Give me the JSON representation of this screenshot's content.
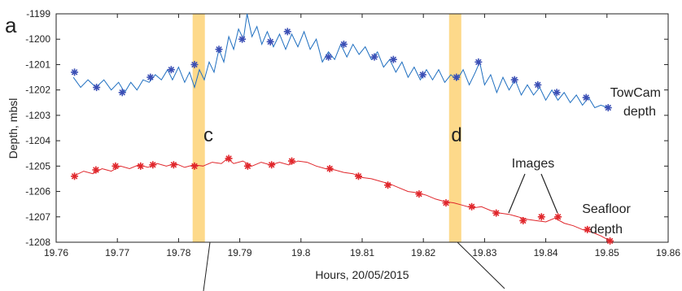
{
  "panel_label": "a",
  "annotations": {
    "band_c": "c",
    "band_d": "d",
    "images": "Images",
    "towcam_1": "TowCam",
    "towcam_2": "depth",
    "seafloor_1": "Seafloor",
    "seafloor_2": "depth"
  },
  "chart_data": {
    "type": "line",
    "xlabel": "Hours, 20/05/2015",
    "ylabel": "Depth, mbsl",
    "xlim": [
      19.76,
      19.86
    ],
    "ylim": [
      -1208,
      -1199
    ],
    "xticks": [
      "19.76",
      "19.77",
      "19.78",
      "19.79",
      "19.8",
      "19.81",
      "19.82",
      "19.83",
      "19.84",
      "19.85",
      "19.86"
    ],
    "yticks": [
      "-1199",
      "-1200",
      "-1201",
      "-1202",
      "-1203",
      "-1204",
      "-1205",
      "-1206",
      "-1207",
      "-1208"
    ],
    "grid": false,
    "highlight_bands": [
      {
        "label": "c",
        "x": [
          19.7823,
          19.7843
        ],
        "color": "#fdd98a"
      },
      {
        "label": "d",
        "x": [
          19.8242,
          19.8262
        ],
        "color": "#fdd98a"
      }
    ],
    "series": [
      {
        "name": "TowCam depth",
        "color": "#1f6fc0",
        "marker_color": "#3b4fb5",
        "line": [
          [
            19.7628,
            -1201.5
          ],
          [
            19.764,
            -1201.9
          ],
          [
            19.7652,
            -1201.6
          ],
          [
            19.7665,
            -1201.9
          ],
          [
            19.7678,
            -1201.6
          ],
          [
            19.769,
            -1202.0
          ],
          [
            19.7702,
            -1201.7
          ],
          [
            19.7712,
            -1202.1
          ],
          [
            19.7722,
            -1201.7
          ],
          [
            19.7732,
            -1202.0
          ],
          [
            19.7742,
            -1201.6
          ],
          [
            19.7752,
            -1201.7
          ],
          [
            19.7762,
            -1201.4
          ],
          [
            19.7772,
            -1201.6
          ],
          [
            19.7782,
            -1201.2
          ],
          [
            19.779,
            -1201.6
          ],
          [
            19.78,
            -1201.1
          ],
          [
            19.781,
            -1201.7
          ],
          [
            19.7818,
            -1201.3
          ],
          [
            19.7826,
            -1201.9
          ],
          [
            19.7834,
            -1201.2
          ],
          [
            19.7842,
            -1201.6
          ],
          [
            19.785,
            -1200.9
          ],
          [
            19.7858,
            -1201.3
          ],
          [
            19.7866,
            -1200.4
          ],
          [
            19.7874,
            -1200.9
          ],
          [
            19.7882,
            -1199.9
          ],
          [
            19.789,
            -1200.4
          ],
          [
            19.7898,
            -1199.6
          ],
          [
            19.7906,
            -1200.0
          ],
          [
            19.7912,
            -1199.0
          ],
          [
            19.792,
            -1199.9
          ],
          [
            19.7928,
            -1199.5
          ],
          [
            19.7936,
            -1200.2
          ],
          [
            19.7945,
            -1199.7
          ],
          [
            19.7955,
            -1200.3
          ],
          [
            19.7965,
            -1199.8
          ],
          [
            19.7975,
            -1200.4
          ],
          [
            19.7985,
            -1199.8
          ],
          [
            19.7995,
            -1200.3
          ],
          [
            19.8005,
            -1199.7
          ],
          [
            19.8015,
            -1200.4
          ],
          [
            19.8025,
            -1200.0
          ],
          [
            19.8035,
            -1200.9
          ],
          [
            19.8045,
            -1200.5
          ],
          [
            19.8055,
            -1200.8
          ],
          [
            19.8065,
            -1200.2
          ],
          [
            19.8075,
            -1200.7
          ],
          [
            19.8085,
            -1200.2
          ],
          [
            19.8095,
            -1200.6
          ],
          [
            19.8105,
            -1200.3
          ],
          [
            19.8115,
            -1200.8
          ],
          [
            19.8125,
            -1200.5
          ],
          [
            19.8135,
            -1201.1
          ],
          [
            19.8145,
            -1200.8
          ],
          [
            19.8155,
            -1201.3
          ],
          [
            19.8165,
            -1200.9
          ],
          [
            19.8175,
            -1201.5
          ],
          [
            19.8185,
            -1201.1
          ],
          [
            19.8195,
            -1201.6
          ],
          [
            19.8205,
            -1201.2
          ],
          [
            19.8215,
            -1201.6
          ],
          [
            19.8225,
            -1201.2
          ],
          [
            19.8235,
            -1201.7
          ],
          [
            19.8245,
            -1201.4
          ],
          [
            19.8255,
            -1201.6
          ],
          [
            19.8265,
            -1201.2
          ],
          [
            19.8275,
            -1201.8
          ],
          [
            19.8285,
            -1201.3
          ],
          [
            19.8292,
            -1200.9
          ],
          [
            19.83,
            -1201.8
          ],
          [
            19.831,
            -1201.4
          ],
          [
            19.832,
            -1202.1
          ],
          [
            19.833,
            -1201.5
          ],
          [
            19.834,
            -1202.0
          ],
          [
            19.835,
            -1201.6
          ],
          [
            19.836,
            -1202.2
          ],
          [
            19.837,
            -1201.8
          ],
          [
            19.838,
            -1202.2
          ],
          [
            19.839,
            -1201.9
          ],
          [
            19.84,
            -1202.4
          ],
          [
            19.841,
            -1202.0
          ],
          [
            19.842,
            -1202.4
          ],
          [
            19.843,
            -1202.1
          ],
          [
            19.844,
            -1202.5
          ],
          [
            19.845,
            -1202.2
          ],
          [
            19.846,
            -1202.6
          ],
          [
            19.847,
            -1202.3
          ],
          [
            19.848,
            -1202.7
          ],
          [
            19.849,
            -1202.6
          ],
          [
            19.8502,
            -1202.7
          ]
        ],
        "markers": [
          [
            19.763,
            -1201.3
          ],
          [
            19.7666,
            -1201.9
          ],
          [
            19.7708,
            -1202.1
          ],
          [
            19.7754,
            -1201.5
          ],
          [
            19.7788,
            -1201.2
          ],
          [
            19.7826,
            -1201.0
          ],
          [
            19.7866,
            -1200.4
          ],
          [
            19.7904,
            -1200.0
          ],
          [
            19.795,
            -1200.1
          ],
          [
            19.7978,
            -1199.7
          ],
          [
            19.8045,
            -1200.7
          ],
          [
            19.807,
            -1200.2
          ],
          [
            19.812,
            -1200.7
          ],
          [
            19.8151,
            -1200.8
          ],
          [
            19.8199,
            -1201.4
          ],
          [
            19.8254,
            -1201.5
          ],
          [
            19.829,
            -1200.9
          ],
          [
            19.8349,
            -1201.6
          ],
          [
            19.8387,
            -1201.8
          ],
          [
            19.8418,
            -1202.1
          ],
          [
            19.8466,
            -1202.3
          ],
          [
            19.8502,
            -1202.7
          ]
        ]
      },
      {
        "name": "Seafloor depth",
        "color": "#e0262b",
        "marker_color": "#e0262b",
        "line": [
          [
            19.7628,
            -1205.4
          ],
          [
            19.7645,
            -1205.2
          ],
          [
            19.766,
            -1205.3
          ],
          [
            19.7675,
            -1205.1
          ],
          [
            19.769,
            -1205.2
          ],
          [
            19.7705,
            -1205.0
          ],
          [
            19.772,
            -1205.1
          ],
          [
            19.7735,
            -1204.95
          ],
          [
            19.775,
            -1205.05
          ],
          [
            19.7765,
            -1204.9
          ],
          [
            19.778,
            -1205.0
          ],
          [
            19.7795,
            -1204.9
          ],
          [
            19.781,
            -1205.05
          ],
          [
            19.7825,
            -1204.95
          ],
          [
            19.784,
            -1205.0
          ],
          [
            19.7855,
            -1204.85
          ],
          [
            19.787,
            -1204.9
          ],
          [
            19.788,
            -1204.7
          ],
          [
            19.789,
            -1204.9
          ],
          [
            19.7905,
            -1204.8
          ],
          [
            19.792,
            -1205.0
          ],
          [
            19.7935,
            -1204.85
          ],
          [
            19.795,
            -1204.95
          ],
          [
            19.7965,
            -1204.85
          ],
          [
            19.798,
            -1204.95
          ],
          [
            19.7995,
            -1204.8
          ],
          [
            19.801,
            -1204.85
          ],
          [
            19.8025,
            -1205.0
          ],
          [
            19.804,
            -1205.1
          ],
          [
            19.8055,
            -1205.15
          ],
          [
            19.807,
            -1205.25
          ],
          [
            19.8085,
            -1205.3
          ],
          [
            19.81,
            -1205.45
          ],
          [
            19.8115,
            -1205.5
          ],
          [
            19.813,
            -1205.6
          ],
          [
            19.8145,
            -1205.7
          ],
          [
            19.816,
            -1205.85
          ],
          [
            19.8175,
            -1206.0
          ],
          [
            19.819,
            -1206.05
          ],
          [
            19.8205,
            -1206.15
          ],
          [
            19.822,
            -1206.3
          ],
          [
            19.8235,
            -1206.4
          ],
          [
            19.825,
            -1206.45
          ],
          [
            19.8265,
            -1206.55
          ],
          [
            19.828,
            -1206.65
          ],
          [
            19.8295,
            -1206.6
          ],
          [
            19.831,
            -1206.75
          ],
          [
            19.8325,
            -1206.85
          ],
          [
            19.834,
            -1206.9
          ],
          [
            19.8355,
            -1207.0
          ],
          [
            19.837,
            -1207.1
          ],
          [
            19.8385,
            -1207.15
          ],
          [
            19.84,
            -1207.2
          ],
          [
            19.8415,
            -1207.05
          ],
          [
            19.843,
            -1207.25
          ],
          [
            19.8445,
            -1207.35
          ],
          [
            19.846,
            -1207.5
          ],
          [
            19.8475,
            -1207.6
          ],
          [
            19.849,
            -1207.75
          ],
          [
            19.8505,
            -1207.95
          ]
        ],
        "markers": [
          [
            19.763,
            -1205.4
          ],
          [
            19.7665,
            -1205.15
          ],
          [
            19.7697,
            -1205.0
          ],
          [
            19.7738,
            -1205.0
          ],
          [
            19.7758,
            -1204.95
          ],
          [
            19.7792,
            -1204.95
          ],
          [
            19.7826,
            -1205.0
          ],
          [
            19.7882,
            -1204.7
          ],
          [
            19.7913,
            -1205.0
          ],
          [
            19.7952,
            -1204.95
          ],
          [
            19.7985,
            -1204.8
          ],
          [
            19.8047,
            -1205.1
          ],
          [
            19.8094,
            -1205.4
          ],
          [
            19.8142,
            -1205.75
          ],
          [
            19.8193,
            -1206.1
          ],
          [
            19.8237,
            -1206.45
          ],
          [
            19.8279,
            -1206.6
          ],
          [
            19.8319,
            -1206.85
          ],
          [
            19.8363,
            -1207.15
          ],
          [
            19.8393,
            -1207.0
          ],
          [
            19.842,
            -1207.0
          ],
          [
            19.8468,
            -1207.5
          ],
          [
            19.8505,
            -1207.95
          ]
        ]
      }
    ]
  }
}
